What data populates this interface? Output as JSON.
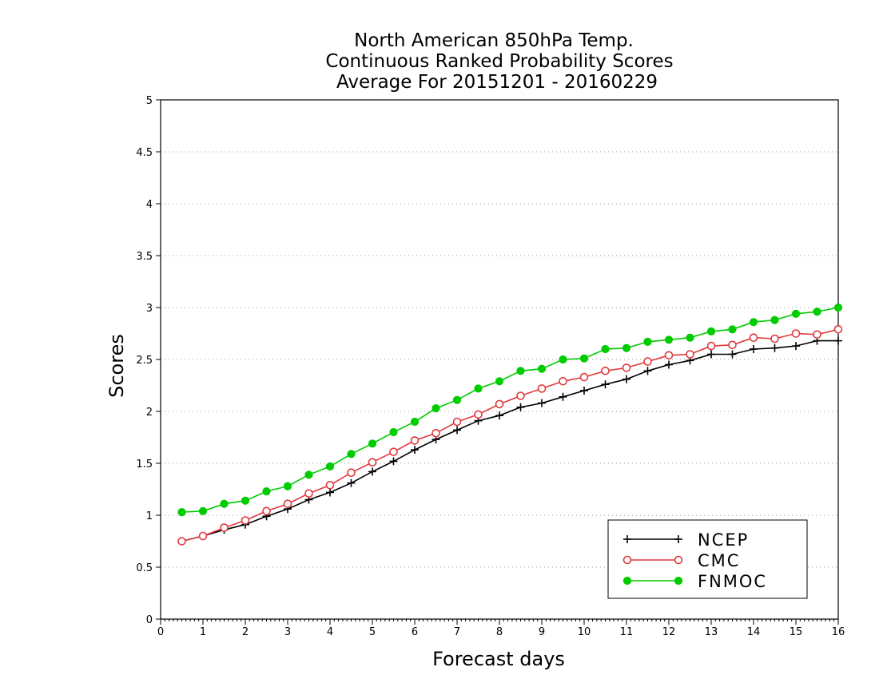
{
  "chart_data": {
    "type": "line",
    "title_lines": [
      "North American 850hPa Temp.",
      "Continuous Ranked Probability Scores",
      "Average For 20151201 - 20160229"
    ],
    "xlabel": "Forecast days",
    "ylabel": "Scores",
    "xlim": [
      0,
      16
    ],
    "ylim": [
      0,
      5
    ],
    "x_ticks": [
      "0",
      "1",
      "2",
      "3",
      "4",
      "5",
      "6",
      "7",
      "8",
      "9",
      "10",
      "11",
      "12",
      "13",
      "14",
      "15",
      "16"
    ],
    "y_ticks": [
      "0",
      "0.5",
      "1",
      "1.5",
      "2",
      "2.5",
      "3",
      "3.5",
      "4",
      "4.5",
      "5"
    ],
    "grid": "dotted horizontal",
    "legend_position": "bottom-right",
    "x": [
      0.5,
      1,
      1.5,
      2,
      2.5,
      3,
      3.5,
      4,
      4.5,
      5,
      5.5,
      6,
      6.5,
      7,
      7.5,
      8,
      8.5,
      9,
      9.5,
      10,
      10.5,
      11,
      11.5,
      12,
      12.5,
      13,
      13.5,
      14,
      14.5,
      15,
      15.5,
      16
    ],
    "series": [
      {
        "name": "NCEP",
        "color": "#000000",
        "marker": "plus",
        "values": [
          0.75,
          0.8,
          0.86,
          0.91,
          0.99,
          1.06,
          1.15,
          1.22,
          1.31,
          1.42,
          1.52,
          1.63,
          1.73,
          1.82,
          1.91,
          1.96,
          2.04,
          2.08,
          2.14,
          2.2,
          2.26,
          2.31,
          2.39,
          2.45,
          2.49,
          2.55,
          2.55,
          2.6,
          2.61,
          2.63,
          2.68,
          2.68
        ]
      },
      {
        "name": "CMC",
        "color": "#e0393e",
        "marker": "open-circle",
        "values": [
          0.75,
          0.8,
          0.88,
          0.95,
          1.04,
          1.11,
          1.21,
          1.29,
          1.41,
          1.51,
          1.61,
          1.72,
          1.79,
          1.9,
          1.97,
          2.07,
          2.15,
          2.22,
          2.29,
          2.33,
          2.39,
          2.42,
          2.48,
          2.54,
          2.55,
          2.63,
          2.64,
          2.71,
          2.7,
          2.75,
          2.74,
          2.79
        ]
      },
      {
        "name": "FNMOC",
        "color": "#00cc00",
        "marker": "filled-circle",
        "values": [
          1.03,
          1.04,
          1.11,
          1.14,
          1.23,
          1.28,
          1.39,
          1.47,
          1.59,
          1.69,
          1.8,
          1.9,
          2.03,
          2.11,
          2.22,
          2.29,
          2.39,
          2.41,
          2.5,
          2.51,
          2.6,
          2.61,
          2.67,
          2.69,
          2.71,
          2.77,
          2.79,
          2.86,
          2.88,
          2.94,
          2.96,
          3.0
        ]
      }
    ]
  }
}
